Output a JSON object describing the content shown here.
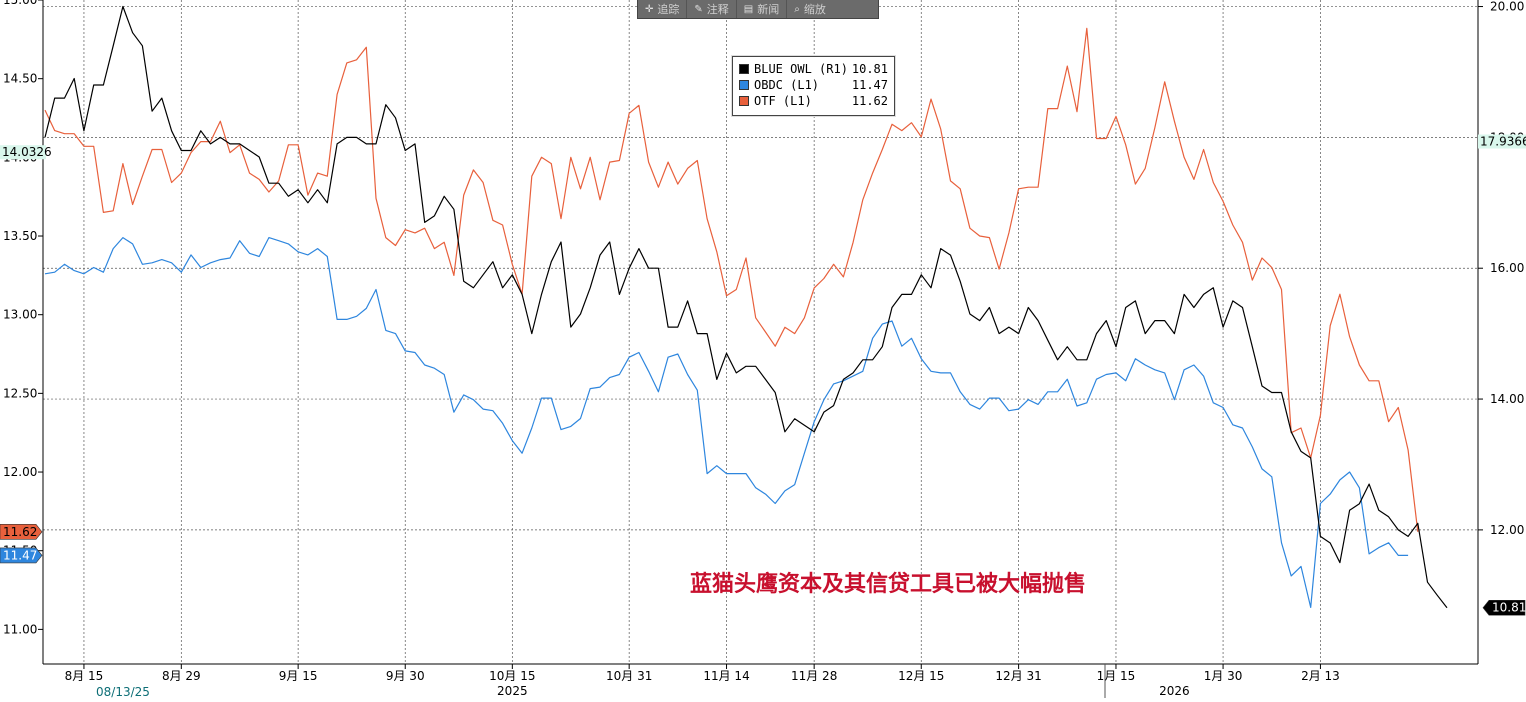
{
  "toolbar": {
    "items": [
      {
        "icon": "crosshair-icon",
        "label": "追踪"
      },
      {
        "icon": "pencil-icon",
        "label": "注释"
      },
      {
        "icon": "news-icon",
        "label": "新闻"
      },
      {
        "icon": "zoom-icon",
        "label": "缩放"
      }
    ]
  },
  "annotation": "蓝猫头鹰资本及其信贷工具已被大幅抛售",
  "colors": {
    "blue_owl": "#000000",
    "obdc": "#2e86de",
    "otf": "#e8603c"
  },
  "chart_data": {
    "type": "line",
    "title": "",
    "start_date_label": "08/13/25",
    "x_ticks": [
      {
        "label": "8月 15",
        "idx": 4
      },
      {
        "label": "8月 29",
        "idx": 14
      },
      {
        "label": "9月 15",
        "idx": 26
      },
      {
        "label": "9月 30",
        "idx": 37
      },
      {
        "label": "10月 15",
        "idx": 48
      },
      {
        "label": "10月 31",
        "idx": 60
      },
      {
        "label": "11月 14",
        "idx": 70
      },
      {
        "label": "11月 28",
        "idx": 79
      },
      {
        "label": "12月 15",
        "idx": 90
      },
      {
        "label": "12月 31",
        "idx": 100
      },
      {
        "label": "1月 15",
        "idx": 110
      },
      {
        "label": "1月 30",
        "idx": 121
      },
      {
        "label": "2月 13",
        "idx": 131
      }
    ],
    "year_labels": [
      {
        "label": "2025",
        "idx": 48
      },
      {
        "label": "2026",
        "idx": 116
      }
    ],
    "left_axis": {
      "ylim": [
        10.78,
        15.0
      ],
      "ticks": [
        "11.00",
        "11.50",
        "12.00",
        "12.50",
        "13.00",
        "13.50",
        "14.00",
        "14.50",
        "15.00"
      ],
      "marker_value": "14.0326"
    },
    "right_axis": {
      "ylim": [
        9.95,
        20.1
      ],
      "ticks": [
        "12.00",
        "14.00",
        "16.00",
        "18.00",
        "20.00"
      ],
      "marker_value": "17.9366"
    },
    "last_values": {
      "blue_owl": "10.81",
      "obdc": "11.47",
      "otf": "11.62"
    },
    "legend_position": "top-center",
    "series": [
      {
        "name": "BLUE OWL (R1)",
        "key": "blue_owl",
        "axis": "right",
        "last": "10.81",
        "values": [
          18.0,
          18.6,
          18.6,
          18.9,
          18.1,
          18.8,
          18.8,
          19.4,
          20.0,
          19.6,
          19.4,
          18.4,
          18.6,
          18.1,
          17.8,
          17.8,
          18.1,
          17.9,
          18.0,
          17.9,
          17.9,
          17.8,
          17.7,
          17.3,
          17.3,
          17.1,
          17.2,
          17.0,
          17.2,
          17.0,
          17.9,
          18.0,
          18.0,
          17.9,
          17.9,
          18.5,
          18.3,
          17.8,
          17.9,
          16.7,
          16.8,
          17.1,
          16.9,
          15.8,
          15.7,
          15.9,
          16.1,
          15.7,
          15.9,
          15.6,
          15.0,
          15.6,
          16.1,
          16.4,
          15.1,
          15.3,
          15.7,
          16.2,
          16.4,
          15.6,
          16.0,
          16.3,
          16.0,
          16.0,
          15.1,
          15.1,
          15.5,
          15.0,
          15.0,
          14.3,
          14.7,
          14.4,
          14.5,
          14.5,
          14.3,
          14.1,
          13.5,
          13.7,
          13.6,
          13.5,
          13.8,
          13.9,
          14.3,
          14.4,
          14.6,
          14.6,
          14.8,
          15.4,
          15.6,
          15.6,
          15.9,
          15.7,
          16.3,
          16.2,
          15.8,
          15.3,
          15.2,
          15.4,
          15.0,
          15.1,
          15.0,
          15.4,
          15.2,
          14.9,
          14.6,
          14.8,
          14.6,
          14.6,
          15.0,
          15.2,
          14.8,
          15.4,
          15.5,
          15.0,
          15.2,
          15.2,
          15.0,
          15.6,
          15.4,
          15.6,
          15.7,
          15.1,
          15.5,
          15.4,
          14.8,
          14.2,
          14.1,
          14.1,
          13.5,
          13.2,
          13.1,
          11.9,
          11.8,
          11.5,
          12.3,
          12.4,
          12.7,
          12.3,
          12.2,
          12.0,
          11.9,
          12.1,
          11.2,
          11.0,
          10.81
        ]
      },
      {
        "name": "OBDC (L1)",
        "key": "obdc",
        "axis": "left",
        "last": "11.47",
        "values": [
          13.26,
          13.27,
          13.32,
          13.28,
          13.26,
          13.3,
          13.27,
          13.42,
          13.49,
          13.45,
          13.32,
          13.33,
          13.35,
          13.33,
          13.27,
          13.38,
          13.3,
          13.33,
          13.35,
          13.36,
          13.47,
          13.39,
          13.37,
          13.49,
          13.47,
          13.45,
          13.4,
          13.38,
          13.42,
          13.37,
          12.97,
          12.97,
          12.99,
          13.04,
          13.16,
          12.9,
          12.88,
          12.77,
          12.76,
          12.68,
          12.66,
          12.62,
          12.38,
          12.49,
          12.46,
          12.4,
          12.39,
          12.31,
          12.2,
          12.12,
          12.28,
          12.47,
          12.47,
          12.27,
          12.29,
          12.34,
          12.53,
          12.54,
          12.6,
          12.62,
          12.73,
          12.76,
          12.64,
          12.51,
          12.73,
          12.75,
          12.62,
          12.52,
          11.99,
          12.04,
          11.99,
          11.99,
          11.99,
          11.9,
          11.86,
          11.8,
          11.88,
          11.92,
          12.12,
          12.32,
          12.46,
          12.56,
          12.58,
          12.61,
          12.64,
          12.85,
          12.94,
          12.96,
          12.8,
          12.85,
          12.72,
          12.64,
          12.63,
          12.63,
          12.51,
          12.43,
          12.4,
          12.47,
          12.47,
          12.39,
          12.4,
          12.46,
          12.43,
          12.51,
          12.51,
          12.59,
          12.42,
          12.44,
          12.59,
          12.62,
          12.63,
          12.58,
          12.72,
          12.68,
          12.65,
          12.63,
          12.46,
          12.65,
          12.68,
          12.61,
          12.44,
          12.41,
          12.3,
          12.28,
          12.16,
          12.02,
          11.97,
          11.55,
          11.34,
          11.4,
          11.14,
          11.8,
          11.86,
          11.95,
          12.0,
          11.9,
          11.48,
          11.52,
          11.55,
          11.47,
          11.47
        ]
      },
      {
        "name": "OTF (L1)",
        "key": "otf",
        "axis": "left",
        "last": "11.62",
        "values": [
          14.3,
          14.17,
          14.15,
          14.15,
          14.07,
          14.07,
          13.65,
          13.66,
          13.96,
          13.7,
          13.88,
          14.05,
          14.05,
          13.84,
          13.9,
          14.03,
          14.1,
          14.1,
          14.23,
          14.03,
          14.08,
          13.9,
          13.86,
          13.78,
          13.85,
          14.08,
          14.08,
          13.76,
          13.9,
          13.88,
          14.4,
          14.6,
          14.62,
          14.7,
          13.74,
          13.49,
          13.44,
          13.54,
          13.52,
          13.55,
          13.42,
          13.46,
          13.25,
          13.76,
          13.92,
          13.84,
          13.6,
          13.57,
          13.32,
          13.13,
          13.88,
          14.0,
          13.96,
          13.61,
          14.0,
          13.8,
          14.0,
          13.73,
          13.97,
          13.98,
          14.28,
          14.33,
          13.97,
          13.81,
          13.97,
          13.83,
          13.93,
          13.98,
          13.61,
          13.4,
          13.12,
          13.16,
          13.36,
          12.98,
          12.89,
          12.8,
          12.92,
          12.88,
          12.98,
          13.17,
          13.23,
          13.32,
          13.24,
          13.46,
          13.73,
          13.9,
          14.05,
          14.21,
          14.17,
          14.22,
          14.13,
          14.37,
          14.18,
          13.85,
          13.8,
          13.55,
          13.5,
          13.49,
          13.29,
          13.52,
          13.8,
          13.81,
          13.81,
          14.31,
          14.31,
          14.58,
          14.29,
          14.82,
          14.12,
          14.12,
          14.26,
          14.08,
          13.83,
          13.93,
          14.19,
          14.48,
          14.23,
          14.0,
          13.86,
          14.05,
          13.84,
          13.72,
          13.57,
          13.46,
          13.22,
          13.36,
          13.3,
          13.16,
          12.25,
          12.28,
          12.09,
          12.36,
          12.93,
          13.13,
          12.86,
          12.68,
          12.58,
          12.58,
          12.32,
          12.41,
          12.14,
          11.62
        ]
      }
    ]
  }
}
